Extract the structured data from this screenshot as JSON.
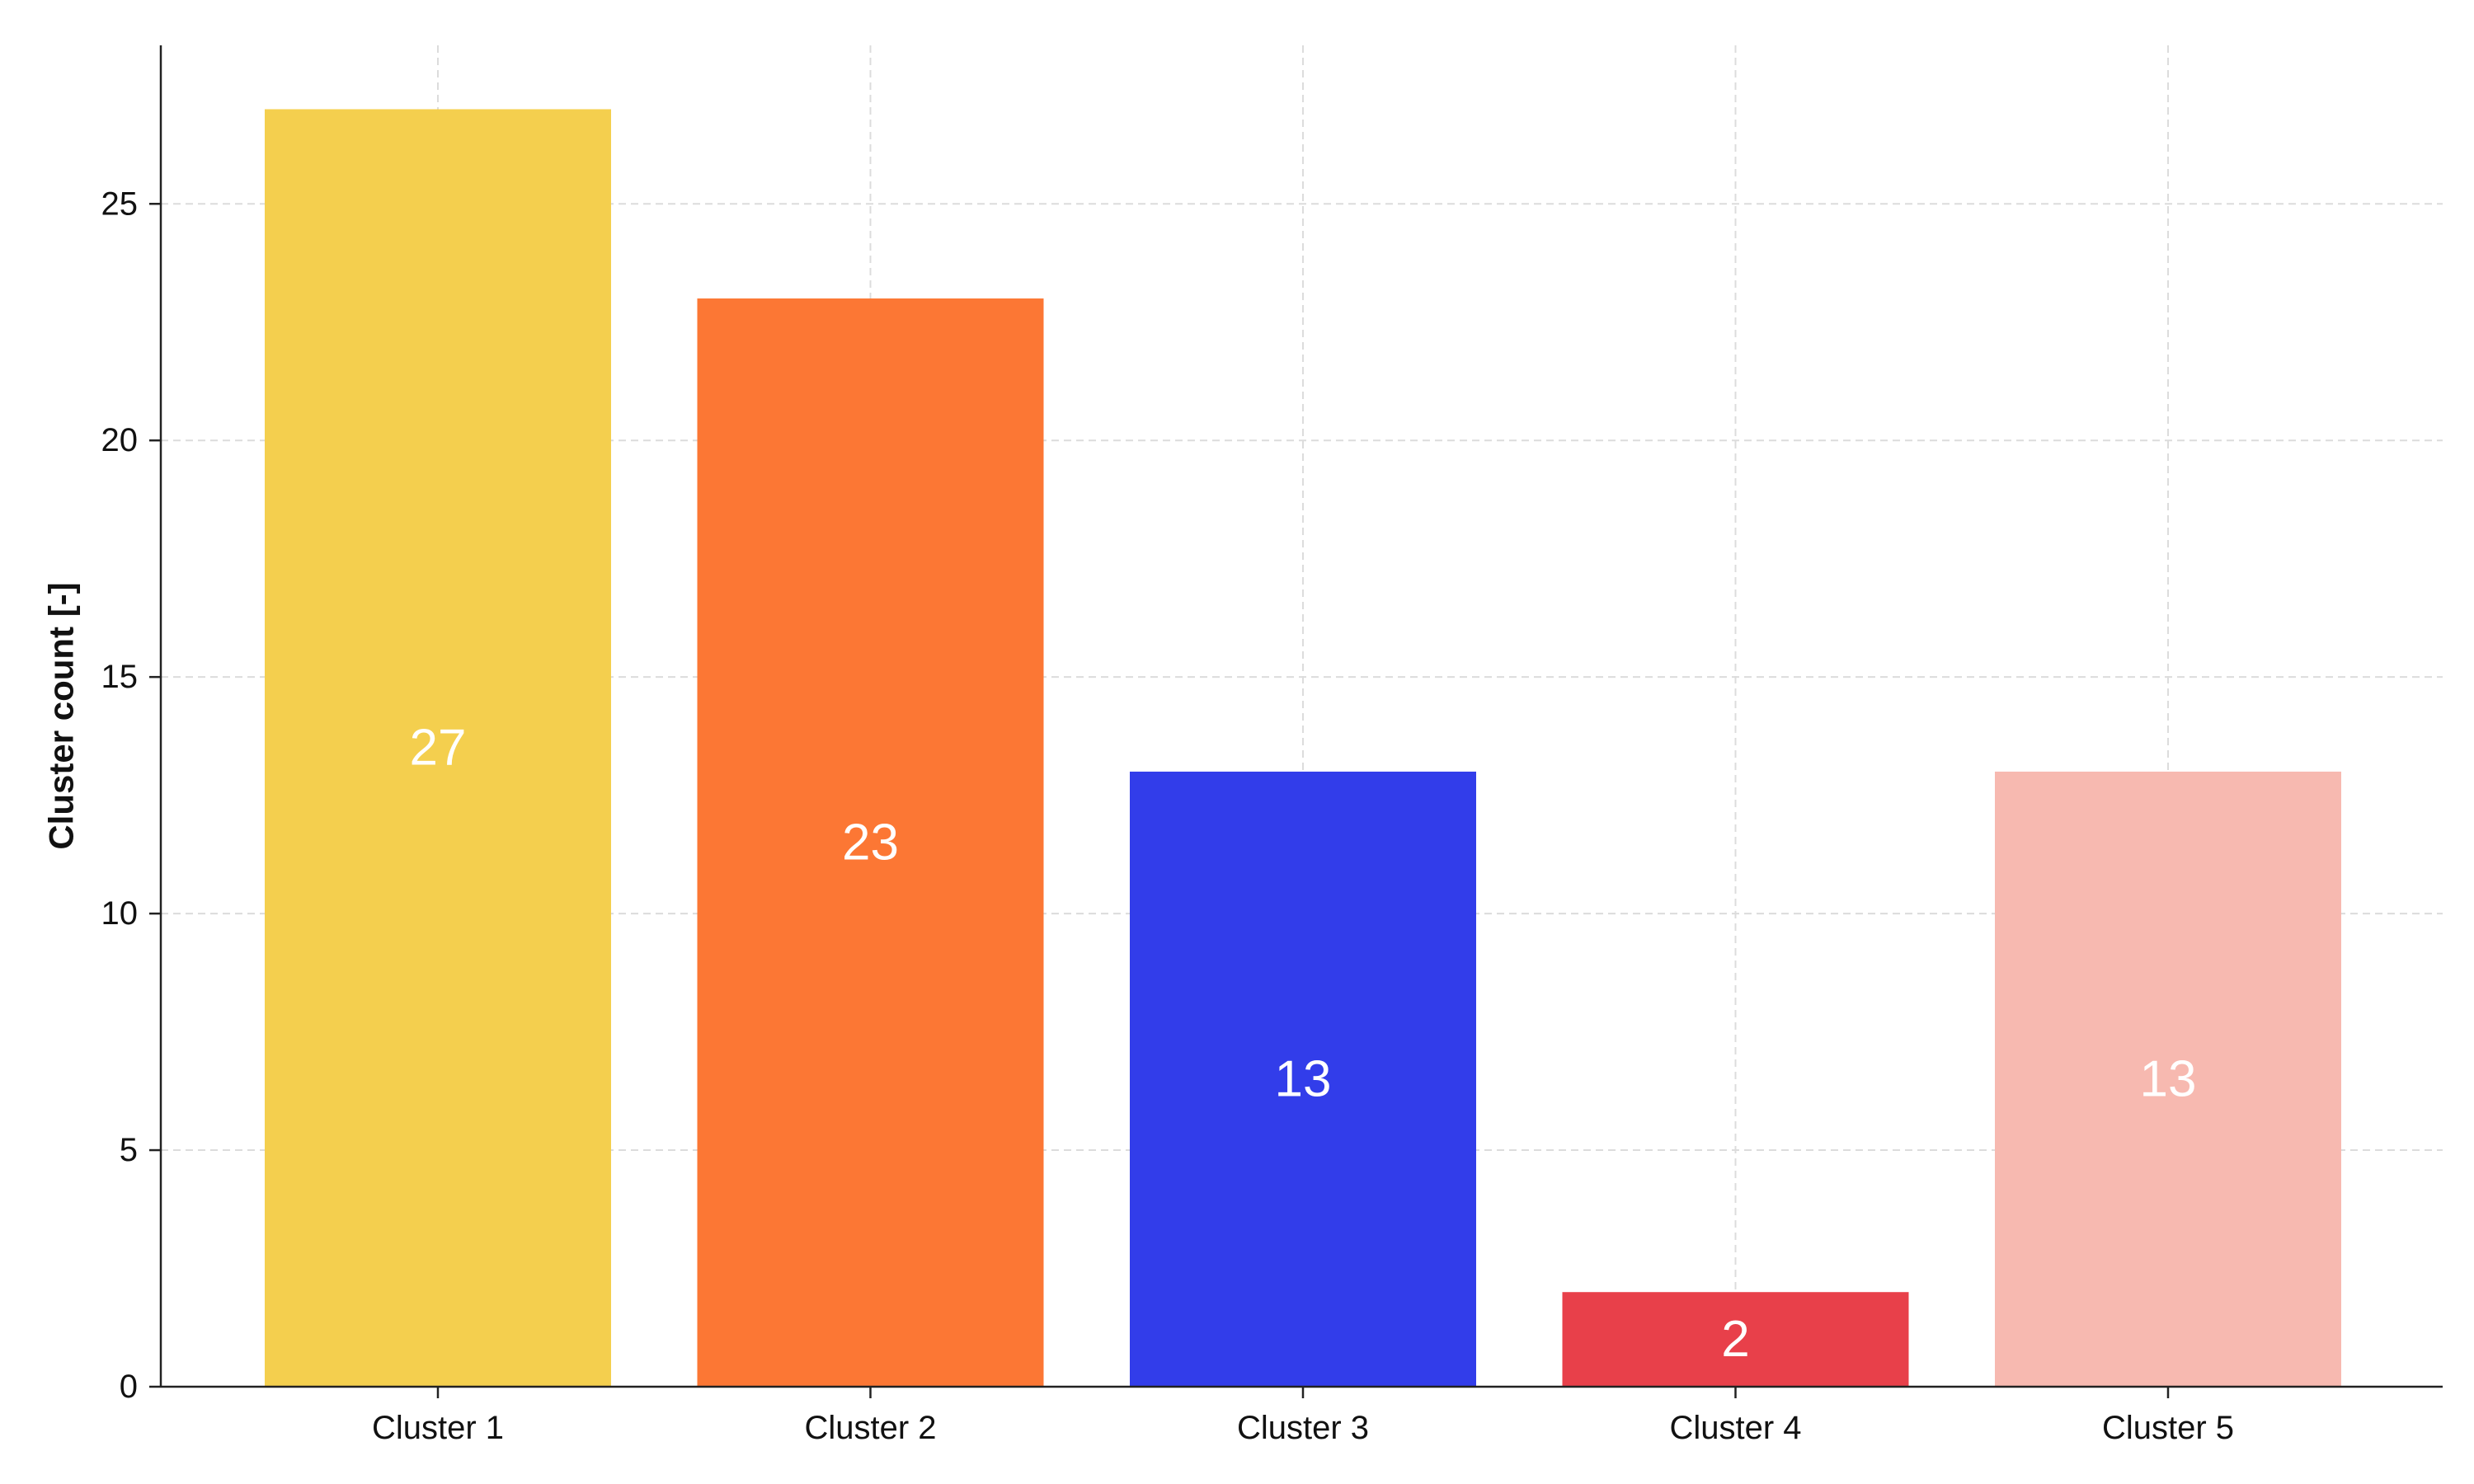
{
  "chart_data": {
    "type": "bar",
    "categories": [
      "Cluster 1",
      "Cluster 2",
      "Cluster 3",
      "Cluster 4",
      "Cluster 5"
    ],
    "values": [
      27,
      23,
      13,
      2,
      13
    ],
    "colors": [
      "#F4CF4E",
      "#FC7734",
      "#323DEA",
      "#E8404A",
      "#F7B9B0"
    ],
    "title": "",
    "xlabel": "",
    "ylabel": "Cluster count [-]",
    "ylim": [
      0,
      28.35
    ],
    "yticks": [
      0,
      5,
      10,
      15,
      20,
      25
    ],
    "grid": true,
    "data_labels": true,
    "data_label_color": "#ffffff"
  }
}
